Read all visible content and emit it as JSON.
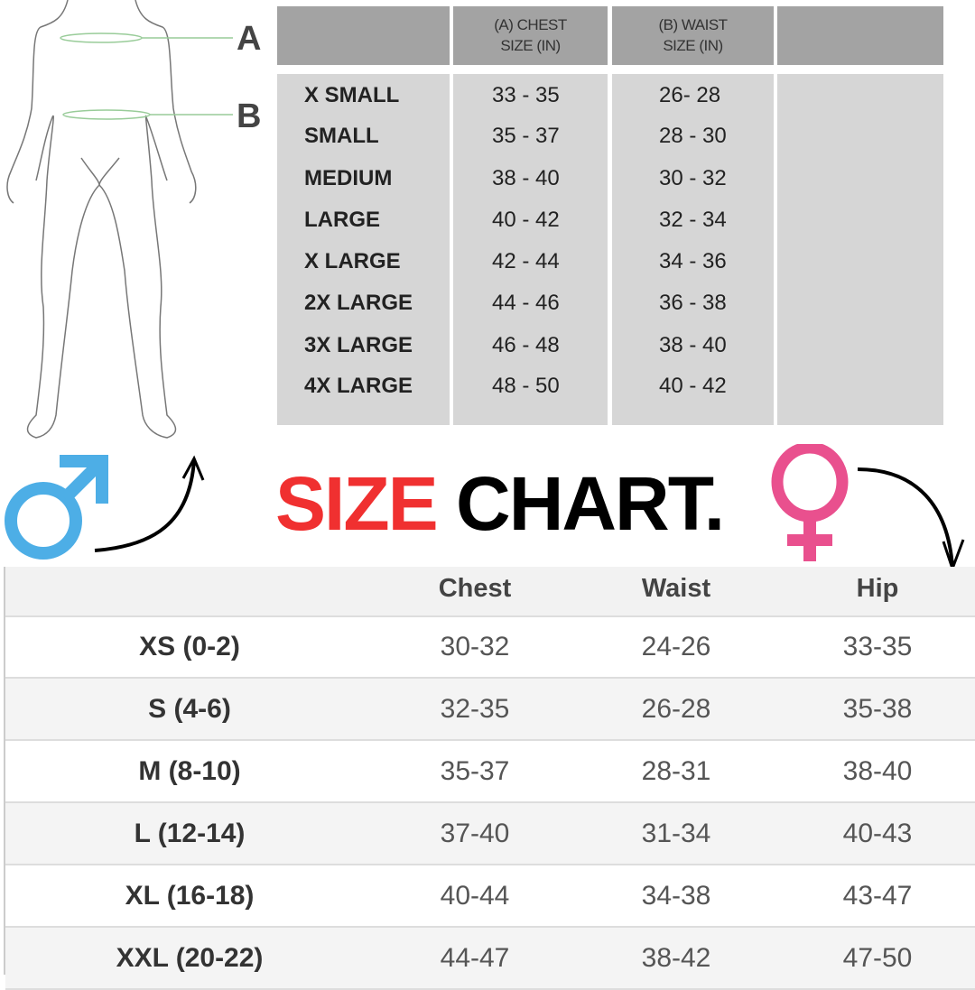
{
  "men": {
    "figure_labels": [
      "A",
      "B"
    ],
    "headers": [
      "",
      "(A) CHEST\nSIZE (IN)",
      "(B) WAIST\nSIZE (IN)",
      ""
    ],
    "rows": [
      {
        "size": "X SMALL",
        "chest": "33 - 35",
        "waist": "26- 28"
      },
      {
        "size": "SMALL",
        "chest": "35 - 37",
        "waist": "28 - 30"
      },
      {
        "size": "MEDIUM",
        "chest": "38 - 40",
        "waist": "30 - 32"
      },
      {
        "size": "LARGE",
        "chest": "40 - 42",
        "waist": "32 - 34"
      },
      {
        "size": "X LARGE",
        "chest": "42 - 44",
        "waist": "34 - 36"
      },
      {
        "size": "2X LARGE",
        "chest": "44 - 46",
        "waist": "36 - 38"
      },
      {
        "size": "3X LARGE",
        "chest": "46 - 48",
        "waist": "38 - 40"
      },
      {
        "size": "4X LARGE",
        "chest": "48 - 50",
        "waist": "40 - 42"
      }
    ],
    "icon": "male-symbol-icon",
    "icon_color": "#4daee6"
  },
  "title": {
    "part1": "SIZE",
    "part2": " CHART.",
    "part1_color": "#f03030",
    "part2_color": "#000000"
  },
  "women": {
    "icon": "female-symbol-icon",
    "icon_color": "#e9508e",
    "headers": [
      "",
      "Chest",
      "Waist",
      "Hip"
    ],
    "rows": [
      {
        "size": "XS (0-2)",
        "chest": "30-32",
        "waist": "24-26",
        "hip": "33-35"
      },
      {
        "size": "S (4-6)",
        "chest": "32-35",
        "waist": "26-28",
        "hip": "35-38"
      },
      {
        "size": "M (8-10)",
        "chest": "35-37",
        "waist": "28-31",
        "hip": "38-40"
      },
      {
        "size": "L (12-14)",
        "chest": "37-40",
        "waist": "31-34",
        "hip": "40-43"
      },
      {
        "size": "XL (16-18)",
        "chest": "40-44",
        "waist": "34-38",
        "hip": "43-47"
      },
      {
        "size": "XXL (20-22)",
        "chest": "44-47",
        "waist": "38-42",
        "hip": "47-50"
      }
    ]
  }
}
